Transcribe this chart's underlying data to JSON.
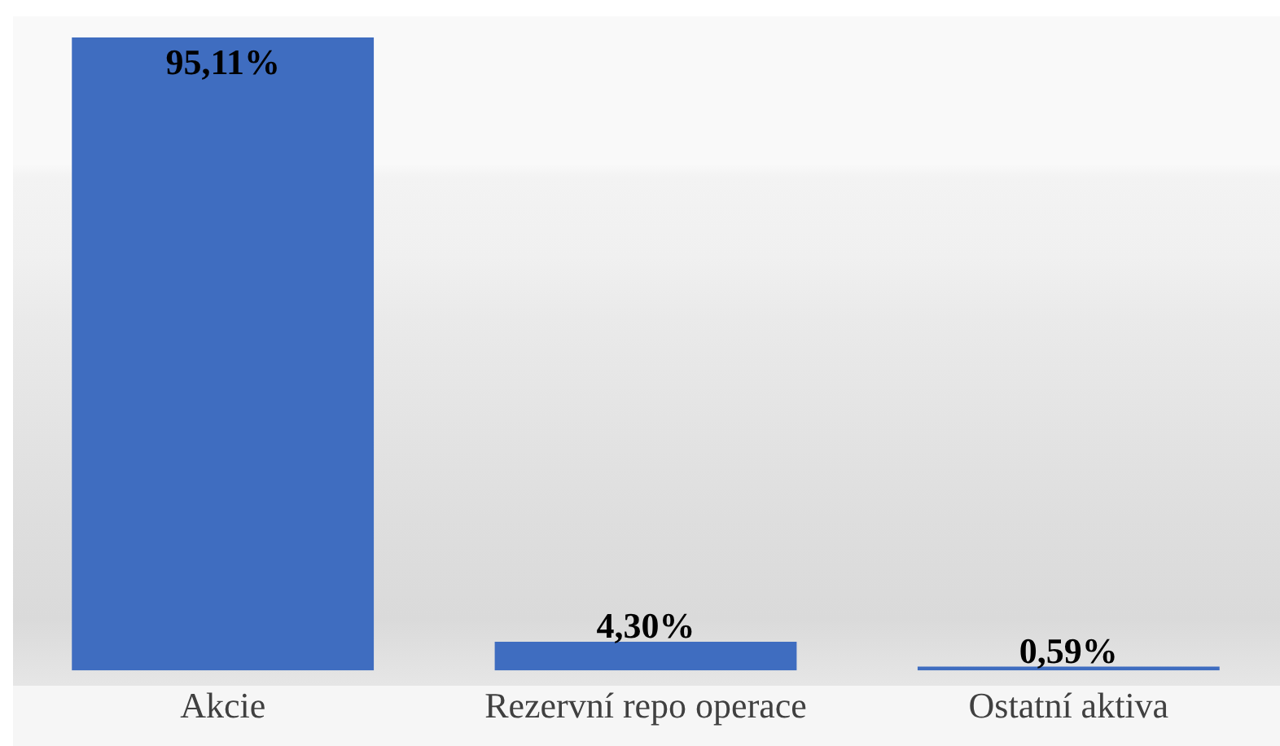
{
  "chart_data": {
    "type": "bar",
    "categories": [
      "Akcie",
      "Rezervní repo operace",
      "Ostatní aktiva"
    ],
    "values": [
      95.11,
      4.3,
      0.59
    ],
    "value_labels": [
      "95,11%",
      "4,30%",
      "0,59%"
    ],
    "color": "#3f6dc0",
    "grid": false
  }
}
